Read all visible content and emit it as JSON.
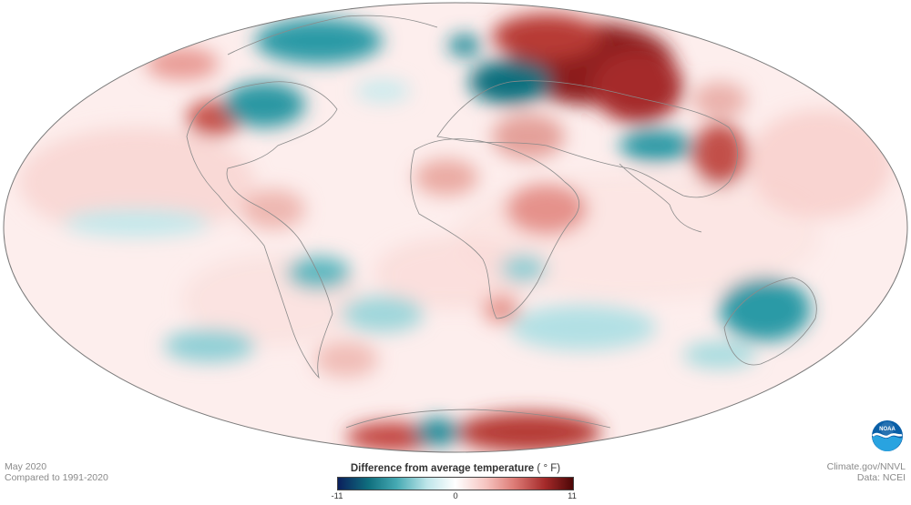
{
  "map": {
    "projection": "Robinson-like oval",
    "background_fill": "#fdeeed",
    "outline_color": "#7a7a7a",
    "coastline_color": "#7d7d7d"
  },
  "footer": {
    "date": "May 2020",
    "baseline": "Compared to 1991-2020",
    "credit": "Climate.gov/NNVL",
    "data_source": "Data: NCEI"
  },
  "legend": {
    "title": "Difference from average temperature",
    "unit": "( ° F)",
    "min_label": "-11",
    "mid_label": "0",
    "max_label": "11",
    "colors": [
      "#0b1f5c",
      "#0f6f7e",
      "#46aab3",
      "#bfe6ea",
      "#ffffff",
      "#f6c4c0",
      "#dd7b76",
      "#a52a2a",
      "#4d0707"
    ]
  },
  "logo": {
    "text": "NOAA",
    "icon": "noaa-logo-icon"
  },
  "anomalies": {
    "cold_color": "#1b8a98",
    "warm_color": "#b8403a"
  }
}
